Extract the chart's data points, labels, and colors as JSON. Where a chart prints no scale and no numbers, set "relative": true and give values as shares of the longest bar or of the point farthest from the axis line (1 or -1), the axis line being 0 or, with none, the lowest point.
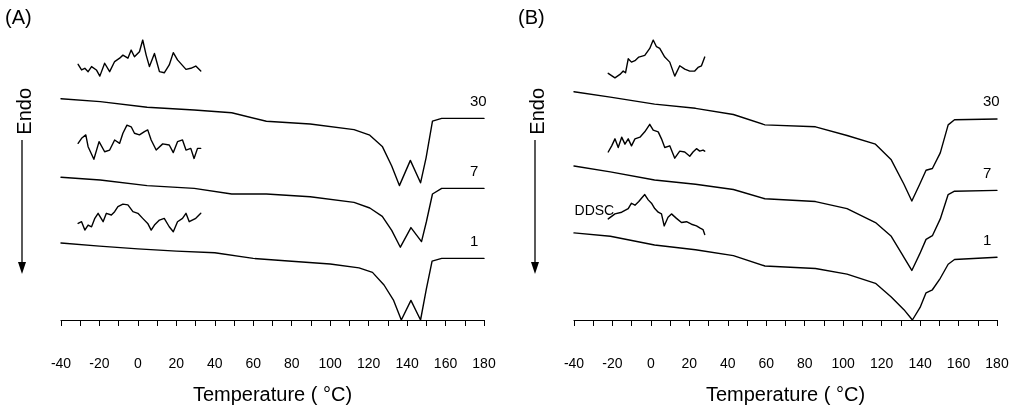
{
  "chart_data": [
    {
      "type": "line",
      "title": "(A)",
      "xlabel": "Temperature ( °C)",
      "ylabel": "Endo",
      "relative": true,
      "marker": "none",
      "xlim": [
        -40,
        180
      ],
      "xticks": [
        -40,
        {
          "value": -30,
          "label": null
        },
        -20,
        {
          "value": -10,
          "label": null
        },
        0,
        {
          "value": 10,
          "label": null
        },
        20,
        {
          "value": 30,
          "label": null
        },
        40,
        {
          "value": 50,
          "label": null
        },
        60,
        {
          "value": 70,
          "label": null
        },
        80,
        {
          "value": 90,
          "label": null
        },
        100,
        {
          "value": 110,
          "label": null
        },
        120,
        {
          "value": 130,
          "label": null
        },
        140,
        {
          "value": 150,
          "label": null
        },
        160,
        {
          "value": 170,
          "label": null
        },
        180
      ],
      "series": [
        {
          "name": "30",
          "color": "#000000",
          "x": [
            -40,
            -19.6,
            4.8,
            29.3,
            48.8,
            66.8,
            89.6,
            112.4,
            120.6,
            127.1,
            132,
            136,
            141.7,
            147,
            149.9,
            153.2,
            158,
            180
          ],
          "values": [
            0.79,
            0.78,
            0.76,
            0.75,
            0.74,
            0.71,
            0.7,
            0.68,
            0.66,
            0.62,
            0.55,
            0.48,
            0.57,
            0.49,
            0.58,
            0.71,
            0.72,
            0.72
          ]
        },
        {
          "name": "7",
          "color": "#000000",
          "x": [
            -40,
            -19.6,
            4.8,
            29.3,
            48.8,
            66.8,
            89.6,
            112.4,
            120.6,
            127.1,
            132,
            136.5,
            142,
            147.5,
            150,
            153.2,
            158,
            180
          ],
          "values": [
            0.51,
            0.5,
            0.48,
            0.47,
            0.45,
            0.45,
            0.44,
            0.42,
            0.4,
            0.37,
            0.32,
            0.26,
            0.33,
            0.28,
            0.35,
            0.45,
            0.47,
            0.47
          ]
        },
        {
          "name": "1",
          "color": "#000000",
          "x": [
            -40,
            -20,
            0,
            20,
            40,
            60,
            80,
            100,
            115,
            122,
            128,
            133,
            137,
            142,
            147,
            150,
            153,
            158,
            180
          ],
          "values": [
            0.275,
            0.264,
            0.254,
            0.246,
            0.24,
            0.22,
            0.21,
            0.2,
            0.186,
            0.17,
            0.125,
            0.07,
            0.0,
            0.07,
            0.0,
            0.11,
            0.21,
            0.22,
            0.22
          ]
        },
        {
          "color": "#000000",
          "x": [
            -31.1,
            -29.3,
            -27.6,
            -25.9,
            -24.1,
            -21.6,
            -19.8,
            -17.3,
            -14.7,
            -12.1,
            -9.5,
            -7.8,
            -5.2,
            -3.5,
            -1.8,
            0.8,
            2.5,
            4.3,
            6.0,
            8.6,
            11.2,
            13.7,
            16.3,
            18.4,
            20.6,
            25.0,
            27.5,
            30.1,
            32.7
          ],
          "values": [
            0.913,
            0.893,
            0.899,
            0.887,
            0.905,
            0.893,
            0.871,
            0.917,
            0.887,
            0.923,
            0.935,
            0.946,
            0.935,
            0.964,
            0.94,
            0.958,
            1.0,
            0.946,
            0.905,
            0.952,
            0.887,
            0.883,
            0.911,
            0.955,
            0.929,
            0.895,
            0.899,
            0.907,
            0.889
          ]
        },
        {
          "color": "#000000",
          "x": [
            -31.1,
            -29.3,
            -27.1,
            -25.9,
            -22.9,
            -20.2,
            -17.3,
            -14.7,
            -12.1,
            -9.5,
            -7.8,
            -5.7,
            -3.5,
            -1.8,
            0.8,
            3.4,
            5.1,
            6.9,
            9.5,
            12.9,
            16.3,
            18.4,
            20.6,
            23.2,
            25.0,
            27.5,
            29.2,
            31.0,
            32.7
          ],
          "values": [
            0.631,
            0.649,
            0.661,
            0.619,
            0.574,
            0.637,
            0.601,
            0.607,
            0.643,
            0.631,
            0.667,
            0.696,
            0.69,
            0.667,
            0.661,
            0.673,
            0.679,
            0.643,
            0.607,
            0.629,
            0.625,
            0.598,
            0.637,
            0.643,
            0.607,
            0.613,
            0.577,
            0.613,
            0.613
          ]
        },
        {
          "color": "#000000",
          "x": [
            -31.1,
            -29.3,
            -27.6,
            -25.9,
            -24.1,
            -22.4,
            -20.7,
            -18.1,
            -16.4,
            -13.8,
            -12.1,
            -10.4,
            -7.8,
            -5.2,
            -2.6,
            0,
            2.5,
            5.1,
            6.9,
            8.6,
            11.2,
            13.7,
            16.3,
            18.4,
            20.6,
            23.2,
            25.0,
            26.7,
            30.1,
            32.7
          ],
          "values": [
            0.345,
            0.351,
            0.321,
            0.339,
            0.333,
            0.363,
            0.381,
            0.351,
            0.381,
            0.375,
            0.387,
            0.405,
            0.414,
            0.411,
            0.387,
            0.381,
            0.363,
            0.345,
            0.321,
            0.339,
            0.357,
            0.363,
            0.333,
            0.315,
            0.351,
            0.363,
            0.381,
            0.351,
            0.363,
            0.381
          ]
        }
      ]
    },
    {
      "type": "line",
      "title": "(B)",
      "xlabel": "Temperature ( °C)",
      "ylabel": "Endo",
      "relative": true,
      "marker": "none",
      "xlim": [
        -40,
        180
      ],
      "xticks": [
        -40,
        {
          "value": -30,
          "label": null
        },
        -20,
        {
          "value": -10,
          "label": null
        },
        0,
        {
          "value": 10,
          "label": null
        },
        20,
        {
          "value": 30,
          "label": null
        },
        40,
        {
          "value": 50,
          "label": null
        },
        60,
        {
          "value": 70,
          "label": null
        },
        80,
        {
          "value": 90,
          "label": null
        },
        100,
        {
          "value": 110,
          "label": null
        },
        120,
        {
          "value": 130,
          "label": null
        },
        140,
        {
          "value": 150,
          "label": null
        },
        160,
        {
          "value": 170,
          "label": null
        },
        180
      ],
      "annotations": [
        "DDSC"
      ],
      "series": [
        {
          "name": "30",
          "color": "#000000",
          "x": [
            -40,
            -21.1,
            1.9,
            23.2,
            42.9,
            59.3,
            85.6,
            102,
            116.8,
            125,
            131.6,
            135.7,
            139.8,
            143.1,
            146.4,
            150.5,
            154.6,
            157.9,
            180
          ],
          "values": [
            0.815,
            0.796,
            0.771,
            0.756,
            0.734,
            0.697,
            0.69,
            0.659,
            0.628,
            0.572,
            0.485,
            0.425,
            0.485,
            0.535,
            0.541,
            0.597,
            0.697,
            0.715,
            0.718
          ]
        },
        {
          "name": "7",
          "color": "#000000",
          "x": [
            -40,
            -21.1,
            1.9,
            23.2,
            42.9,
            59.3,
            85.6,
            102,
            116.8,
            125,
            131.6,
            135.7,
            139.8,
            143.1,
            146.4,
            150.5,
            154.6,
            157.9,
            180
          ],
          "values": [
            0.55,
            0.529,
            0.5,
            0.485,
            0.466,
            0.433,
            0.423,
            0.398,
            0.348,
            0.299,
            0.224,
            0.177,
            0.236,
            0.288,
            0.301,
            0.361,
            0.448,
            0.46,
            0.463
          ]
        },
        {
          "name": "1",
          "color": "#000000",
          "x": [
            -40,
            -21.1,
            1.9,
            23.2,
            42.9,
            59.3,
            85.6,
            102,
            116.8,
            125,
            131.6,
            136,
            140,
            143.1,
            146.4,
            150.5,
            154.6,
            157.9,
            180
          ],
          "values": [
            0.311,
            0.299,
            0.268,
            0.251,
            0.23,
            0.193,
            0.184,
            0.164,
            0.131,
            0.082,
            0.037,
            0.0,
            0.045,
            0.097,
            0.108,
            0.149,
            0.199,
            0.216,
            0.224
          ]
        },
        {
          "color": "#000000",
          "x": [
            -22.2,
            -18.7,
            -16.1,
            -14.4,
            -13.2,
            -11.8,
            -10.1,
            -8.3,
            -6.3,
            -3.2,
            -0.6,
            1.2,
            2.9,
            4.6,
            7.2,
            9.8,
            12.4,
            15.0,
            17.6,
            20.2,
            22.8,
            24.5,
            26.3,
            28.0
          ],
          "values": [
            0.881,
            0.865,
            0.877,
            0.889,
            0.883,
            0.933,
            0.921,
            0.926,
            0.939,
            0.945,
            0.97,
            1.0,
            0.976,
            0.97,
            0.939,
            0.921,
            0.871,
            0.908,
            0.896,
            0.889,
            0.889,
            0.902,
            0.908,
            0.939
          ]
        },
        {
          "color": "#000000",
          "x": [
            -22.2,
            -20.4,
            -18.7,
            -17,
            -15.2,
            -13.5,
            -11.8,
            -10.1,
            -8.3,
            -5.7,
            -3.2,
            -0.6,
            1.2,
            3.8,
            5.5,
            7.2,
            9.8,
            12.4,
            15.0,
            17.6,
            20.2,
            21.9,
            23.7,
            25.4,
            27.1,
            28.0
          ],
          "values": [
            0.6,
            0.622,
            0.647,
            0.616,
            0.653,
            0.628,
            0.647,
            0.622,
            0.647,
            0.653,
            0.672,
            0.699,
            0.678,
            0.672,
            0.647,
            0.616,
            0.622,
            0.578,
            0.603,
            0.6,
            0.585,
            0.6,
            0.612,
            0.603,
            0.607,
            0.603
          ]
        },
        {
          "color": "#000000",
          "x": [
            -22.2,
            -18.7,
            -15.2,
            -11.8,
            -10.1,
            -8.3,
            -6.3,
            -4.9,
            -3.2,
            -1.4,
            0.3,
            2.0,
            3.8,
            5.5,
            6.9,
            8.9,
            10.7,
            13.3,
            15.9,
            18.5,
            21.1,
            23.7,
            25.4,
            27.1,
            28.0
          ],
          "values": [
            0.361,
            0.379,
            0.385,
            0.398,
            0.417,
            0.41,
            0.423,
            0.435,
            0.448,
            0.429,
            0.417,
            0.398,
            0.385,
            0.379,
            0.336,
            0.367,
            0.379,
            0.363,
            0.348,
            0.351,
            0.342,
            0.336,
            0.329,
            0.323,
            0.305
          ]
        }
      ]
    }
  ]
}
